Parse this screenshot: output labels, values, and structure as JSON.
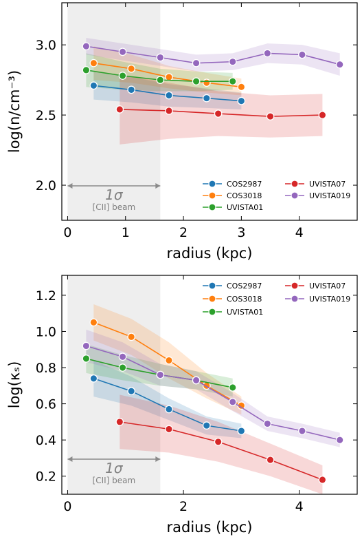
{
  "colors": {
    "COS2987": "#1f77b4",
    "COS3018": "#ff7f0e",
    "UVISTA01": "#2ca02c",
    "UVISTA07": "#d62728",
    "UVISTA019": "#9467bd",
    "beam_shade": "#d9d9d9",
    "beam_text": "#808080"
  },
  "chart_data": [
    {
      "type": "line",
      "xlabel": "radius (kpc)",
      "ylabel": "log(n/cm⁻³)",
      "xlim": [
        -0.1,
        5.0
      ],
      "ylim": [
        1.75,
        3.3
      ],
      "xticks": [
        0,
        1,
        2,
        3,
        4
      ],
      "xtick_labels": [
        "0",
        "1",
        "2",
        "3",
        "4"
      ],
      "yticks": [
        2.0,
        2.5,
        3.0
      ],
      "ytick_labels": [
        "2.0",
        "2.5",
        "3.0"
      ],
      "grid": false,
      "legend": "lower-right",
      "beam": {
        "x0": 0.0,
        "x1": 1.6,
        "label_sigma": "1σ",
        "label_text": "[CII] beam"
      },
      "series": [
        {
          "name": "COS2987",
          "x": [
            0.45,
            1.1,
            1.75,
            2.4,
            3.0
          ],
          "y": [
            2.71,
            2.68,
            2.64,
            2.62,
            2.6
          ],
          "band": [
            0.1,
            0.09,
            0.08,
            0.07,
            0.06
          ]
        },
        {
          "name": "COS3018",
          "x": [
            0.45,
            1.1,
            1.75,
            2.4,
            3.0
          ],
          "y": [
            2.87,
            2.83,
            2.77,
            2.73,
            2.7
          ],
          "band": [
            0.12,
            0.1,
            0.08,
            0.07,
            0.06
          ]
        },
        {
          "name": "UVISTA01",
          "x": [
            0.32,
            0.95,
            1.6,
            2.22,
            2.85
          ],
          "y": [
            2.82,
            2.78,
            2.75,
            2.74,
            2.74
          ],
          "band": [
            0.12,
            0.1,
            0.08,
            0.07,
            0.06
          ]
        },
        {
          "name": "UVISTA07",
          "x": [
            0.9,
            1.75,
            2.6,
            3.5,
            4.4
          ],
          "y": [
            2.54,
            2.53,
            2.51,
            2.49,
            2.5
          ],
          "band": [
            0.25,
            0.2,
            0.16,
            0.15,
            0.15
          ]
        },
        {
          "name": "UVISTA019",
          "x": [
            0.32,
            0.95,
            1.6,
            2.22,
            2.85,
            3.45,
            4.05,
            4.7
          ],
          "y": [
            2.99,
            2.95,
            2.91,
            2.87,
            2.88,
            2.94,
            2.93,
            2.86
          ],
          "band": [
            0.06,
            0.06,
            0.06,
            0.06,
            0.06,
            0.07,
            0.07,
            0.08
          ]
        }
      ]
    },
    {
      "type": "line",
      "xlabel": "radius (kpc)",
      "ylabel": "log(κₛ)",
      "xlim": [
        -0.1,
        5.0
      ],
      "ylim": [
        0.1,
        1.31
      ],
      "xticks": [
        0,
        2,
        4
      ],
      "xtick_labels": [
        "0",
        "2",
        "4"
      ],
      "yticks": [
        0.2,
        0.4,
        0.6,
        0.8,
        1.0,
        1.2
      ],
      "ytick_labels": [
        "0.2",
        "0.4",
        "0.6",
        "0.8",
        "1.0",
        "1.2"
      ],
      "grid": false,
      "legend": "upper-right",
      "beam": {
        "x0": 0.0,
        "x1": 1.6,
        "label_sigma": "1σ",
        "label_text": "[CII] beam"
      },
      "series": [
        {
          "name": "COS2987",
          "x": [
            0.45,
            1.1,
            1.75,
            2.4,
            3.0
          ],
          "y": [
            0.74,
            0.67,
            0.57,
            0.48,
            0.45
          ],
          "band": [
            0.1,
            0.08,
            0.06,
            0.05,
            0.04
          ]
        },
        {
          "name": "COS3018",
          "x": [
            0.45,
            1.1,
            1.75,
            2.4,
            3.0
          ],
          "y": [
            1.05,
            0.97,
            0.84,
            0.7,
            0.59
          ],
          "band": [
            0.1,
            0.1,
            0.1,
            0.07,
            0.05
          ]
        },
        {
          "name": "UVISTA01",
          "x": [
            0.32,
            0.95,
            1.6,
            2.22,
            2.85
          ],
          "y": [
            0.85,
            0.8,
            0.76,
            0.73,
            0.69
          ],
          "band": [
            0.08,
            0.07,
            0.06,
            0.05,
            0.05
          ]
        },
        {
          "name": "UVISTA07",
          "x": [
            0.9,
            1.75,
            2.6,
            3.5,
            4.4
          ],
          "y": [
            0.5,
            0.46,
            0.39,
            0.29,
            0.18
          ],
          "band": [
            0.15,
            0.13,
            0.11,
            0.09,
            0.08
          ]
        },
        {
          "name": "UVISTA019",
          "x": [
            0.32,
            0.95,
            1.6,
            2.22,
            2.85,
            3.45,
            4.05,
            4.7
          ],
          "y": [
            0.92,
            0.86,
            0.76,
            0.73,
            0.61,
            0.49,
            0.45,
            0.4
          ],
          "band": [
            0.09,
            0.08,
            0.06,
            0.05,
            0.05,
            0.04,
            0.04,
            0.04
          ]
        }
      ]
    }
  ]
}
